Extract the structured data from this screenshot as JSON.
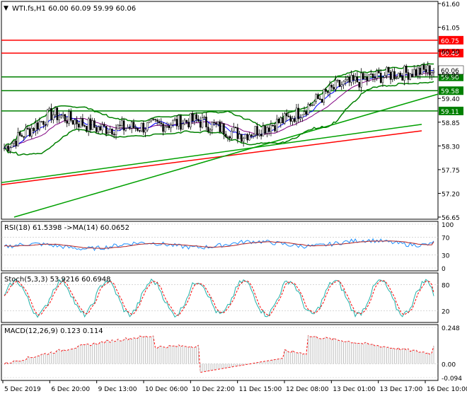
{
  "header": {
    "symbol_line": "WTI.fs,H1  60.00 60.09 59.99 60.06"
  },
  "colors": {
    "frame": "#000000",
    "price_line": "#000000",
    "bands": "#008000",
    "ma_red": "#ff0000",
    "ma_blue": "#0000ff",
    "ma_purple": "#800080",
    "trend": "#00a000",
    "level_red": "#ff0000",
    "level_green": "#008000",
    "label_text": "#ffffff",
    "rsi_line": "#1e90ff",
    "rsi_ma": "#b22222",
    "stoch_main": "#20b2aa",
    "stoch_signal": "#ff0000",
    "macd_hist": "#c0c0c0",
    "macd_signal": "#ff0000",
    "current_price_bg": "#ffffff"
  },
  "main_panel": {
    "y_axis_ticks": [
      "61.60",
      "61.05",
      "60.50",
      "59.95",
      "59.40",
      "58.85",
      "58.30",
      "57.75",
      "57.20",
      "56.65"
    ],
    "y_range": [
      56.65,
      61.6
    ],
    "levels": [
      {
        "label": "60.75",
        "value": 60.75,
        "color": "red"
      },
      {
        "label": "60.45",
        "value": 60.45,
        "color": "red"
      },
      {
        "label": "59.90",
        "value": 59.9,
        "color": "green"
      },
      {
        "label": "59.58",
        "value": 59.58,
        "color": "green"
      },
      {
        "label": "59.11",
        "value": 59.11,
        "color": "green"
      }
    ],
    "current_price": "60.06"
  },
  "rsi_panel": {
    "title": "RSI(18) 61.5398  ->MA(14) 60.0652",
    "ticks": [
      "100",
      "70",
      "30",
      "0"
    ],
    "range": [
      0,
      100
    ],
    "value": 61.5398,
    "ma_value": 60.0652
  },
  "stoch_panel": {
    "title": "Stoch(5,3,3) 53.9216 60.6948",
    "ticks": [
      "80",
      "20"
    ],
    "range": [
      0,
      100
    ],
    "main_value": 53.9216,
    "signal_value": 60.6948
  },
  "macd_panel": {
    "title": "MACD(12,26,9) 0.123 0.114",
    "ticks": [
      "0.248",
      "0.00",
      "-0.094"
    ],
    "range": [
      -0.094,
      0.248
    ],
    "macd_value": 0.123,
    "signal_value": 0.114
  },
  "x_axis": {
    "labels": [
      "5 Dec 2019",
      "6 Dec 20:00",
      "9 Dec 13:00",
      "10 Dec 06:00",
      "10 Dec 22:00",
      "11 Dec 15:00",
      "12 Dec 08:00",
      "13 Dec 01:00",
      "13 Dec 17:00",
      "16 Dec 10:00"
    ]
  },
  "chart_data": {
    "type": "line",
    "title": "WTI.fs,H1",
    "x": [
      "5 Dec 2019",
      "6 Dec 20:00",
      "9 Dec 13:00",
      "10 Dec 06:00",
      "10 Dec 22:00",
      "11 Dec 15:00",
      "12 Dec 08:00",
      "13 Dec 01:00",
      "13 Dec 17:00",
      "16 Dec 10:00"
    ],
    "series": [
      {
        "name": "",
        "values": [
          58.25,
          59.05,
          58.7,
          58.75,
          58.9,
          58.55,
          58.95,
          59.7,
          59.95,
          60.06
        ]
      }
    ],
    "ylim": [
      56.65,
      61.6
    ],
    "levels": [
      60.75,
      60.45,
      59.9,
      59.58,
      59.11
    ],
    "legend": "none",
    "grid": false
  }
}
